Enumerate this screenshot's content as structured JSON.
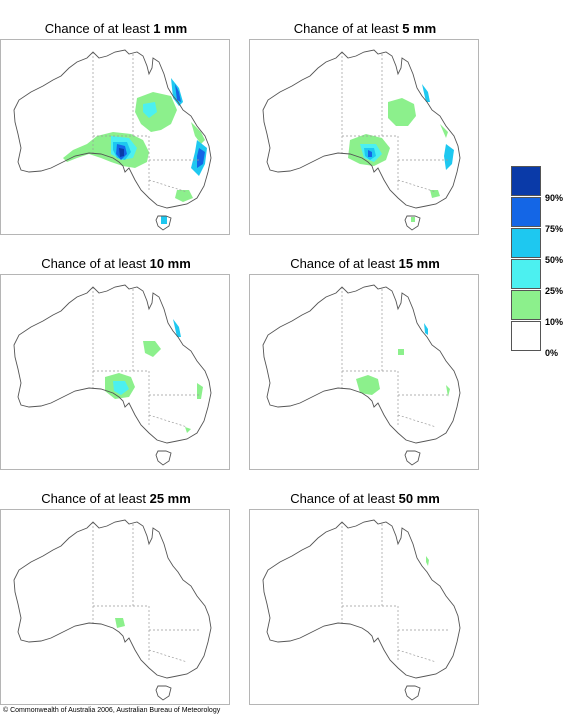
{
  "panels": [
    {
      "title_prefix": "Chance of at least",
      "amount": "1 mm"
    },
    {
      "title_prefix": "Chance of at least",
      "amount": "5 mm"
    },
    {
      "title_prefix": "Chance of at least",
      "amount": "10 mm"
    },
    {
      "title_prefix": "Chance of at least",
      "amount": "15 mm"
    },
    {
      "title_prefix": "Chance of at least",
      "amount": "25 mm"
    },
    {
      "title_prefix": "Chance of at least",
      "amount": "50 mm"
    }
  ],
  "legend": {
    "labels": [
      "90%",
      "75%",
      "50%",
      "25%",
      "10%",
      "0%"
    ],
    "colors": [
      "#0a3aa8",
      "#1466e6",
      "#1ec8f0",
      "#4cf0f0",
      "#8cf08c",
      "#ffffff"
    ]
  },
  "copyright": "© Commonwealth of Australia 2006, Australian Bureau of Meteorology"
}
